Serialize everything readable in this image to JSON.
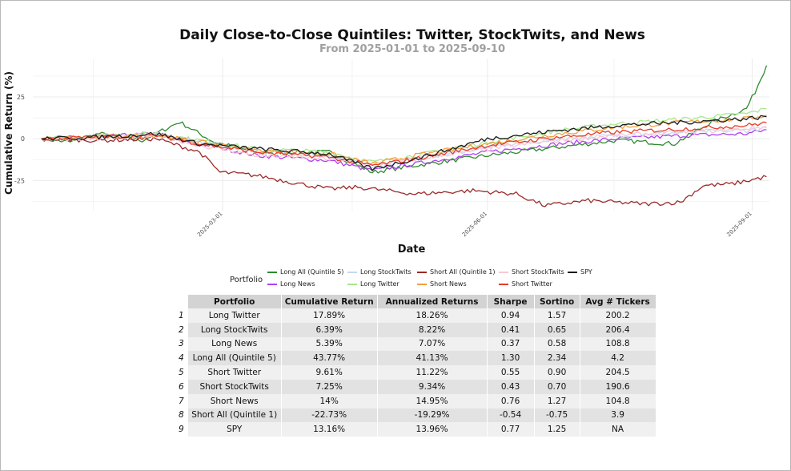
{
  "chart_data": {
    "type": "line",
    "title": "Daily Close-to-Close Quintiles: Twitter, StockTwits, and News",
    "subtitle": "From 2025-01-01 to 2025-09-10",
    "xlabel": "Date",
    "ylabel": "Cumulative Return (%)",
    "x_ticks": [
      "2025-03-01",
      "2025-06-01",
      "2025-09-01"
    ],
    "y_ticks": [
      -25,
      0,
      25
    ],
    "ylim": [
      -43,
      48
    ],
    "xlim": [
      "2024-12-28",
      "2025-09-14"
    ],
    "grid": true,
    "legend_title": "Portfolio",
    "legend_position": "bottom",
    "series": [
      {
        "name": "Long All (Quintile 5)",
        "color": "#2e8b2e",
        "final": 43.77,
        "points": [
          [
            0,
            0
          ],
          [
            10,
            -2
          ],
          [
            20,
            3
          ],
          [
            35,
            -1
          ],
          [
            48,
            10
          ],
          [
            60,
            -2
          ],
          [
            75,
            -8
          ],
          [
            100,
            -8
          ],
          [
            115,
            -20
          ],
          [
            130,
            -16
          ],
          [
            155,
            -10
          ],
          [
            175,
            -6
          ],
          [
            200,
            -1
          ],
          [
            220,
            -3
          ],
          [
            233,
            10
          ],
          [
            245,
            18
          ],
          [
            248,
            28
          ],
          [
            252,
            43.8
          ]
        ]
      },
      {
        "name": "Long News",
        "color": "#b040f0",
        "final": 5.39,
        "points": [
          [
            0,
            0
          ],
          [
            20,
            1
          ],
          [
            40,
            3
          ],
          [
            55,
            -3
          ],
          [
            75,
            -10
          ],
          [
            100,
            -13
          ],
          [
            115,
            -19
          ],
          [
            130,
            -15
          ],
          [
            155,
            -8
          ],
          [
            180,
            -3
          ],
          [
            200,
            0
          ],
          [
            225,
            2
          ],
          [
            245,
            3
          ],
          [
            252,
            5.4
          ]
        ]
      },
      {
        "name": "Long StockTwits",
        "color": "#c6d8ee",
        "final": 6.39,
        "points": [
          [
            0,
            0
          ],
          [
            20,
            1
          ],
          [
            40,
            3
          ],
          [
            55,
            -2
          ],
          [
            75,
            -8
          ],
          [
            100,
            -10
          ],
          [
            115,
            -17
          ],
          [
            130,
            -12
          ],
          [
            155,
            -5
          ],
          [
            180,
            0
          ],
          [
            200,
            2
          ],
          [
            225,
            4
          ],
          [
            245,
            5
          ],
          [
            252,
            6.4
          ]
        ]
      },
      {
        "name": "Long Twitter",
        "color": "#a8e890",
        "final": 17.89,
        "points": [
          [
            0,
            0
          ],
          [
            20,
            2
          ],
          [
            40,
            3
          ],
          [
            55,
            -1
          ],
          [
            75,
            -6
          ],
          [
            100,
            -8
          ],
          [
            115,
            -14
          ],
          [
            130,
            -10
          ],
          [
            155,
            -2
          ],
          [
            180,
            5
          ],
          [
            200,
            9
          ],
          [
            225,
            12
          ],
          [
            245,
            15
          ],
          [
            252,
            17.9
          ]
        ]
      },
      {
        "name": "Short All (Quintile 1)",
        "color": "#9b2a2a",
        "final": -22.73,
        "points": [
          [
            0,
            0
          ],
          [
            20,
            -1
          ],
          [
            40,
            0
          ],
          [
            55,
            -8
          ],
          [
            62,
            -20
          ],
          [
            75,
            -22
          ],
          [
            90,
            -27
          ],
          [
            100,
            -30
          ],
          [
            110,
            -29
          ],
          [
            130,
            -33
          ],
          [
            150,
            -31
          ],
          [
            165,
            -33
          ],
          [
            175,
            -40
          ],
          [
            190,
            -37
          ],
          [
            210,
            -39
          ],
          [
            222,
            -38
          ],
          [
            230,
            -28
          ],
          [
            240,
            -27
          ],
          [
            252,
            -22.7
          ]
        ]
      },
      {
        "name": "Short News",
        "color": "#f0a040",
        "final": 14,
        "points": [
          [
            0,
            0
          ],
          [
            20,
            1
          ],
          [
            40,
            2
          ],
          [
            55,
            -2
          ],
          [
            75,
            -7
          ],
          [
            100,
            -9
          ],
          [
            115,
            -15
          ],
          [
            130,
            -10
          ],
          [
            155,
            -3
          ],
          [
            180,
            3
          ],
          [
            200,
            7
          ],
          [
            225,
            10
          ],
          [
            245,
            12
          ],
          [
            252,
            14
          ]
        ]
      },
      {
        "name": "Short StockTwits",
        "color": "#f8c8d0",
        "final": 7.25,
        "points": [
          [
            0,
            0
          ],
          [
            20,
            0
          ],
          [
            40,
            2
          ],
          [
            55,
            -4
          ],
          [
            75,
            -10
          ],
          [
            100,
            -12
          ],
          [
            115,
            -16
          ],
          [
            130,
            -12
          ],
          [
            155,
            -6
          ],
          [
            180,
            -1
          ],
          [
            200,
            2
          ],
          [
            225,
            4
          ],
          [
            245,
            6
          ],
          [
            252,
            7.3
          ]
        ]
      },
      {
        "name": "Short Twitter",
        "color": "#e83a2a",
        "final": 9.61,
        "points": [
          [
            0,
            0
          ],
          [
            20,
            1
          ],
          [
            40,
            2
          ],
          [
            55,
            -3
          ],
          [
            75,
            -8
          ],
          [
            100,
            -11
          ],
          [
            115,
            -16
          ],
          [
            130,
            -12
          ],
          [
            155,
            -4
          ],
          [
            180,
            1
          ],
          [
            200,
            4
          ],
          [
            225,
            6
          ],
          [
            245,
            8
          ],
          [
            252,
            9.6
          ]
        ]
      },
      {
        "name": "SPY",
        "color": "#1a1a1a",
        "final": 13.16,
        "points": [
          [
            0,
            0
          ],
          [
            20,
            1
          ],
          [
            40,
            3
          ],
          [
            55,
            -3
          ],
          [
            75,
            -6
          ],
          [
            100,
            -9
          ],
          [
            115,
            -18
          ],
          [
            130,
            -12
          ],
          [
            155,
            0
          ],
          [
            180,
            5
          ],
          [
            200,
            8
          ],
          [
            225,
            10
          ],
          [
            245,
            12
          ],
          [
            252,
            13.2
          ]
        ]
      }
    ]
  },
  "legend": {
    "title": "Portfolio",
    "row1": [
      {
        "label": "Long All (Quintile 5)",
        "color": "#2e8b2e"
      },
      {
        "label": "Long StockTwits",
        "color": "#c6d8ee"
      },
      {
        "label": "Short All (Quintile 1)",
        "color": "#9b2a2a"
      },
      {
        "label": "Short StockTwits",
        "color": "#f8c8d0"
      },
      {
        "label": "SPY",
        "color": "#1a1a1a"
      }
    ],
    "row2": [
      {
        "label": "Long News",
        "color": "#b040f0"
      },
      {
        "label": "Long Twitter",
        "color": "#a8e890"
      },
      {
        "label": "Short News",
        "color": "#f0a040"
      },
      {
        "label": "Short Twitter",
        "color": "#e83a2a"
      }
    ]
  },
  "table": {
    "headers": [
      "Portfolio",
      "Cumulative Return",
      "Annualized Returns",
      "Sharpe",
      "Sortino",
      "Avg # Tickers"
    ],
    "rows": [
      [
        "1",
        "Long Twitter",
        "17.89%",
        "18.26%",
        "0.94",
        "1.57",
        "200.2"
      ],
      [
        "2",
        "Long StockTwits",
        "6.39%",
        "8.22%",
        "0.41",
        "0.65",
        "206.4"
      ],
      [
        "3",
        "Long News",
        "5.39%",
        "7.07%",
        "0.37",
        "0.58",
        "108.8"
      ],
      [
        "4",
        "Long All (Quintile 5)",
        "43.77%",
        "41.13%",
        "1.30",
        "2.34",
        "4.2"
      ],
      [
        "5",
        "Short Twitter",
        "9.61%",
        "11.22%",
        "0.55",
        "0.90",
        "204.5"
      ],
      [
        "6",
        "Short StockTwits",
        "7.25%",
        "9.34%",
        "0.43",
        "0.70",
        "190.6"
      ],
      [
        "7",
        "Short News",
        "14%",
        "14.95%",
        "0.76",
        "1.27",
        "104.8"
      ],
      [
        "8",
        "Short All (Quintile 1)",
        "-22.73%",
        "-19.29%",
        "-0.54",
        "-0.75",
        "3.9"
      ],
      [
        "9",
        "SPY",
        "13.16%",
        "13.96%",
        "0.77",
        "1.25",
        "NA"
      ]
    ]
  }
}
